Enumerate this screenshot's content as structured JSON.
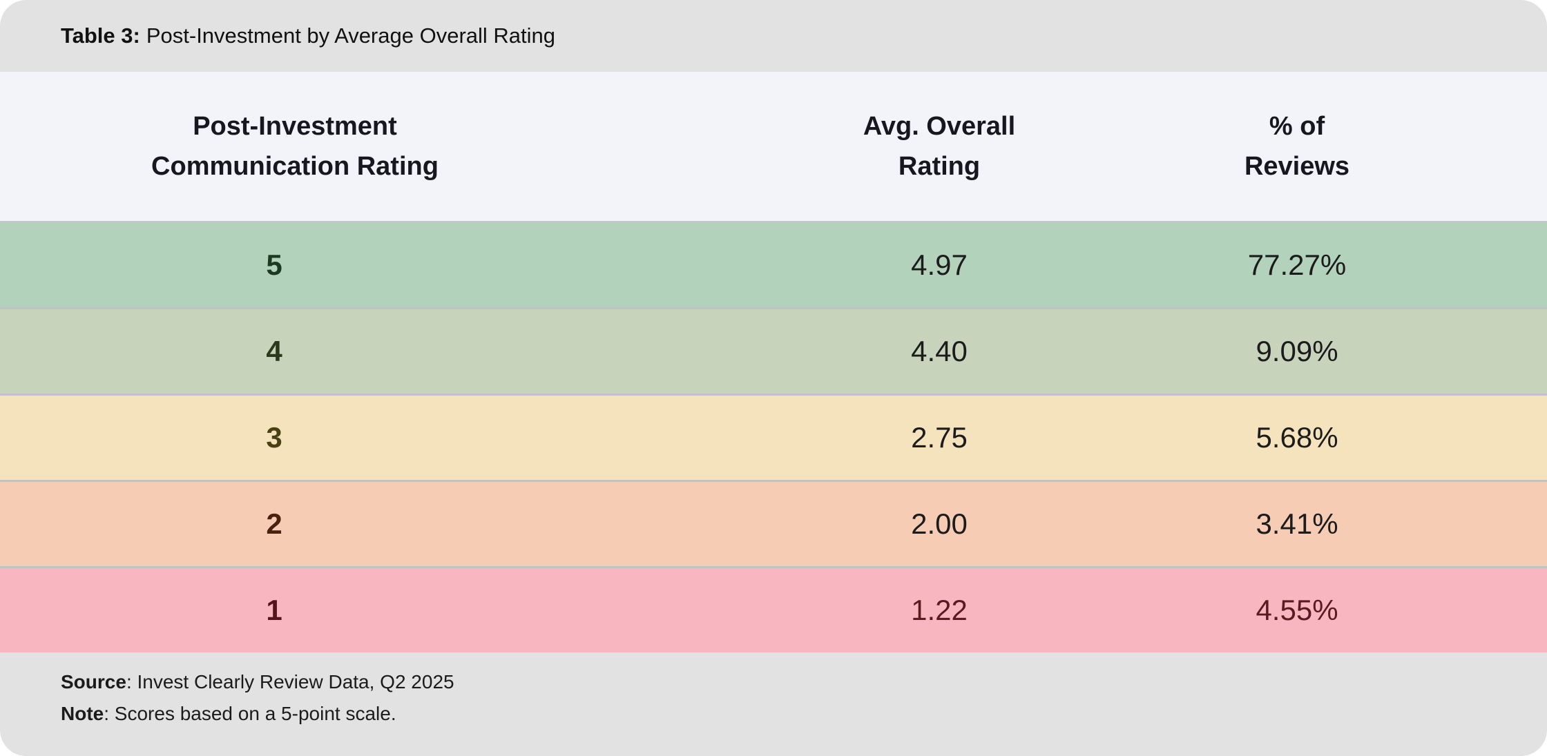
{
  "colors": {
    "page_bg": "#ffffff",
    "band_bg": "#e2e2e3",
    "header_bg": "#f3f4f9",
    "separator": "#c0c2c6",
    "title_text": "#111111",
    "header_text": "#17171f",
    "footer_text": "#1b1b1b"
  },
  "title": {
    "label": "Table 3:",
    "text": "Post-Investment by Average Overall Rating"
  },
  "table": {
    "columns": [
      {
        "line1": "Post-Investment",
        "line2": "Communication Rating"
      },
      {
        "line1": "Avg. Overall",
        "line2": "Rating"
      },
      {
        "line1": "% of",
        "line2": "Reviews"
      }
    ],
    "rows": [
      {
        "rating": "5",
        "avg": "4.97",
        "pct": "77.27%",
        "bg": "#b3d2bb",
        "rating_color": "#1c3a21",
        "value_color": "#1c1c1c"
      },
      {
        "rating": "4",
        "avg": "4.40",
        "pct": "9.09%",
        "bg": "#c8d3bb",
        "rating_color": "#2b3a1b",
        "value_color": "#1c1c1c"
      },
      {
        "rating": "3",
        "avg": "2.75",
        "pct": "5.68%",
        "bg": "#f4e3bd",
        "rating_color": "#4a4015",
        "value_color": "#1c1c1c"
      },
      {
        "rating": "2",
        "avg": "2.00",
        "pct": "3.41%",
        "bg": "#f6ccb5",
        "rating_color": "#47220f",
        "value_color": "#1c1c1c"
      },
      {
        "rating": "1",
        "avg": "1.22",
        "pct": "4.55%",
        "bg": "#f8b7c0",
        "rating_color": "#541419",
        "value_color": "#5a1a20"
      }
    ]
  },
  "footer": {
    "source_label": "Source",
    "source_text": ": Invest Clearly Review Data, Q2 2025",
    "note_label": "Note",
    "note_text": ": Scores based on a 5-point scale."
  },
  "chart_data": {
    "type": "table",
    "title": "Table 3: Post-Investment by Average Overall Rating",
    "columns": [
      "Post-Investment Communication Rating",
      "Avg. Overall Rating",
      "% of Reviews"
    ],
    "rows": [
      [
        "5",
        "4.97",
        "77.27%"
      ],
      [
        "4",
        "4.40",
        "9.09%"
      ],
      [
        "3",
        "2.75",
        "5.68%"
      ],
      [
        "2",
        "2.00",
        "3.41%"
      ],
      [
        "1",
        "1.22",
        "4.55%"
      ]
    ],
    "row_colors": [
      "#b3d2bb",
      "#c8d3bb",
      "#f4e3bd",
      "#f6ccb5",
      "#f8b7c0"
    ],
    "source": "Invest Clearly Review Data, Q2 2025",
    "note": "Scores based on a 5-point scale."
  }
}
